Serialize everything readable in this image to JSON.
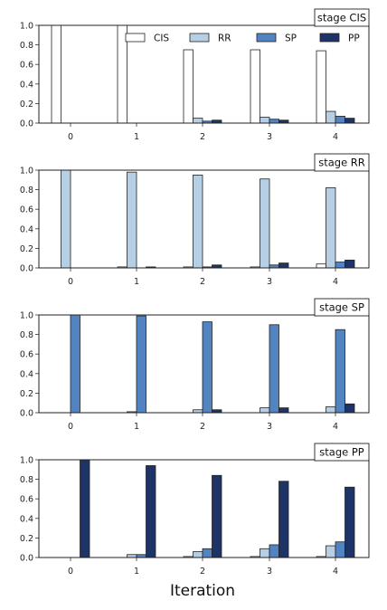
{
  "colors": {
    "CIS": "#ffffff",
    "RR": "#b7cfe4",
    "SP": "#5184c0",
    "PP": "#1e3366",
    "edge": "#222222"
  },
  "chart_data": {
    "type": "bar",
    "xlabel": "Iteration",
    "categories": [
      "0",
      "1",
      "2",
      "3",
      "4"
    ],
    "ylim": [
      0,
      1.0
    ],
    "yticks": [
      "0.0",
      "0.2",
      "0.4",
      "0.6",
      "0.8",
      "1.0"
    ],
    "legend": {
      "placement": "top-right of first panel",
      "entries": [
        "CIS",
        "RR",
        "SP",
        "PP"
      ]
    },
    "panels": [
      {
        "label": "stage CIS",
        "series": [
          {
            "name": "CIS",
            "values": [
              1.0,
              1.0,
              0.75,
              0.75,
              0.74
            ]
          },
          {
            "name": "RR",
            "values": [
              0.0,
              0.0,
              0.05,
              0.06,
              0.12
            ]
          },
          {
            "name": "SP",
            "values": [
              0.0,
              0.0,
              0.02,
              0.04,
              0.07
            ]
          },
          {
            "name": "PP",
            "values": [
              0.0,
              0.0,
              0.03,
              0.03,
              0.05
            ]
          }
        ]
      },
      {
        "label": "stage RR",
        "series": [
          {
            "name": "CIS",
            "values": [
              0.0,
              0.01,
              0.01,
              0.01,
              0.04
            ]
          },
          {
            "name": "RR",
            "values": [
              1.0,
              0.98,
              0.95,
              0.91,
              0.82
            ]
          },
          {
            "name": "SP",
            "values": [
              0.0,
              0.0,
              0.01,
              0.03,
              0.06
            ]
          },
          {
            "name": "PP",
            "values": [
              0.0,
              0.01,
              0.03,
              0.05,
              0.08
            ]
          }
        ]
      },
      {
        "label": "stage SP",
        "series": [
          {
            "name": "CIS",
            "values": [
              0.0,
              0.0,
              0.0,
              0.0,
              0.0
            ]
          },
          {
            "name": "RR",
            "values": [
              0.0,
              0.01,
              0.03,
              0.05,
              0.06
            ]
          },
          {
            "name": "SP",
            "values": [
              1.0,
              0.99,
              0.93,
              0.9,
              0.85
            ]
          },
          {
            "name": "PP",
            "values": [
              0.0,
              0.0,
              0.03,
              0.05,
              0.09
            ]
          }
        ]
      },
      {
        "label": "stage PP",
        "series": [
          {
            "name": "CIS",
            "values": [
              0.0,
              0.0,
              0.01,
              0.01,
              0.01
            ]
          },
          {
            "name": "RR",
            "values": [
              0.0,
              0.03,
              0.06,
              0.09,
              0.12
            ]
          },
          {
            "name": "SP",
            "values": [
              0.0,
              0.03,
              0.09,
              0.13,
              0.16
            ]
          },
          {
            "name": "PP",
            "values": [
              1.0,
              0.94,
              0.84,
              0.78,
              0.72
            ]
          }
        ]
      }
    ]
  }
}
